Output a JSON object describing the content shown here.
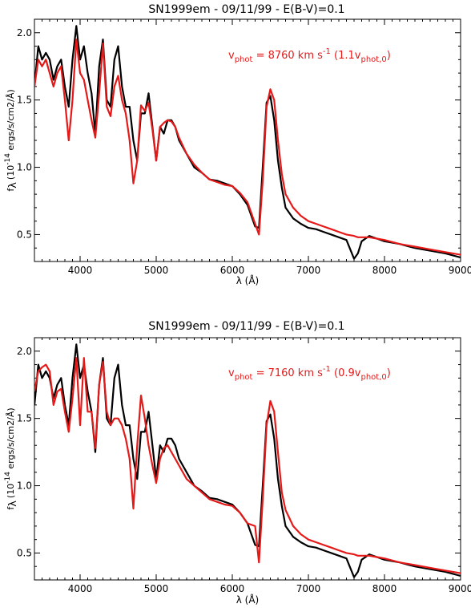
{
  "chart_data": [
    {
      "type": "line",
      "title": "SN1999em  -  09/11/99  -  E(B-V)=0.1",
      "xlabel": "λ (Å)",
      "ylabel": {
        "f": "f",
        "sub": "λ",
        "unit_pre": "(10",
        "exp": "-14",
        "unit_post": " ergs/s/cm2/Å)"
      },
      "annotation": {
        "v": "v",
        "sub": "phot",
        "mid": " = 8760 km s",
        "exp": "-1",
        "tail": " (1.1v",
        "tail_sub": "phot,0",
        "close": ")"
      },
      "xlim": [
        3400,
        9000
      ],
      "ylim": [
        0.3,
        2.1
      ],
      "xticks": [
        4000,
        5000,
        6000,
        7000,
        8000,
        9000
      ],
      "yticks": [
        0.5,
        1.0,
        1.5,
        2.0
      ],
      "yticklabels": [
        "0.5",
        "1.0",
        "1.5",
        "2.0"
      ],
      "series": [
        {
          "color": "#000000",
          "x": [
            3400,
            3450,
            3500,
            3550,
            3600,
            3650,
            3700,
            3750,
            3800,
            3850,
            3900,
            3950,
            4000,
            4050,
            4100,
            4150,
            4200,
            4250,
            4300,
            4350,
            4400,
            4450,
            4500,
            4550,
            4600,
            4650,
            4700,
            4750,
            4800,
            4850,
            4900,
            4950,
            5000,
            5050,
            5100,
            5150,
            5200,
            5250,
            5300,
            5400,
            5500,
            5600,
            5700,
            5800,
            5900,
            6000,
            6100,
            6200,
            6300,
            6350,
            6400,
            6450,
            6500,
            6550,
            6600,
            6650,
            6700,
            6800,
            6900,
            7000,
            7100,
            7200,
            7300,
            7400,
            7500,
            7600,
            7650,
            7700,
            7800,
            7900,
            8000,
            8200,
            8400,
            8600,
            8800,
            9000
          ],
          "y": [
            1.6,
            1.9,
            1.8,
            1.85,
            1.8,
            1.65,
            1.75,
            1.8,
            1.6,
            1.45,
            1.8,
            2.05,
            1.8,
            1.9,
            1.7,
            1.55,
            1.25,
            1.75,
            1.95,
            1.5,
            1.45,
            1.8,
            1.9,
            1.6,
            1.45,
            1.45,
            1.2,
            1.05,
            1.4,
            1.4,
            1.55,
            1.3,
            1.05,
            1.3,
            1.25,
            1.35,
            1.35,
            1.3,
            1.2,
            1.1,
            1.0,
            0.96,
            0.91,
            0.9,
            0.88,
            0.86,
            0.8,
            0.72,
            0.56,
            0.55,
            1.0,
            1.48,
            1.53,
            1.35,
            1.05,
            0.85,
            0.7,
            0.62,
            0.58,
            0.55,
            0.54,
            0.52,
            0.5,
            0.48,
            0.46,
            0.32,
            0.36,
            0.45,
            0.49,
            0.47,
            0.45,
            0.43,
            0.4,
            0.38,
            0.36,
            0.33
          ]
        },
        {
          "color": "#e61919",
          "x": [
            3400,
            3450,
            3500,
            3550,
            3600,
            3650,
            3700,
            3750,
            3800,
            3850,
            3900,
            3950,
            4000,
            4050,
            4100,
            4150,
            4200,
            4250,
            4300,
            4350,
            4400,
            4450,
            4500,
            4550,
            4600,
            4650,
            4700,
            4750,
            4800,
            4850,
            4900,
            4950,
            5000,
            5050,
            5100,
            5150,
            5200,
            5250,
            5300,
            5400,
            5500,
            5600,
            5700,
            5800,
            5900,
            6000,
            6100,
            6200,
            6300,
            6350,
            6400,
            6450,
            6500,
            6550,
            6600,
            6650,
            6700,
            6800,
            6900,
            7000,
            7100,
            7200,
            7300,
            7400,
            7500,
            7600,
            7650,
            7700,
            7800,
            7900,
            8000,
            8200,
            8400,
            8600,
            8800,
            9000
          ],
          "y": [
            1.6,
            1.8,
            1.75,
            1.8,
            1.7,
            1.6,
            1.7,
            1.75,
            1.5,
            1.2,
            1.5,
            1.95,
            1.7,
            1.65,
            1.5,
            1.35,
            1.22,
            1.55,
            1.92,
            1.45,
            1.38,
            1.6,
            1.68,
            1.5,
            1.4,
            1.2,
            0.88,
            1.05,
            1.46,
            1.42,
            1.48,
            1.28,
            1.05,
            1.3,
            1.33,
            1.35,
            1.34,
            1.3,
            1.22,
            1.1,
            1.02,
            0.96,
            0.91,
            0.89,
            0.87,
            0.86,
            0.81,
            0.74,
            0.58,
            0.5,
            0.9,
            1.45,
            1.58,
            1.5,
            1.2,
            0.95,
            0.8,
            0.7,
            0.64,
            0.6,
            0.58,
            0.56,
            0.54,
            0.52,
            0.5,
            0.49,
            0.48,
            0.48,
            0.48,
            0.47,
            0.46,
            0.43,
            0.41,
            0.39,
            0.37,
            0.35
          ]
        }
      ]
    },
    {
      "type": "line",
      "title": "SN1999em  -  09/11/99  -  E(B-V)=0.1",
      "xlabel": "λ (Å)",
      "ylabel": {
        "f": "f",
        "sub": "λ",
        "unit_pre": "(10",
        "exp": "-14",
        "unit_post": " ergs/s/cm2/Å)"
      },
      "annotation": {
        "v": "v",
        "sub": "phot",
        "mid": " = 7160 km s",
        "exp": "-1",
        "tail": " (0.9v",
        "tail_sub": "phot,0",
        "close": ")"
      },
      "xlim": [
        3400,
        9000
      ],
      "ylim": [
        0.3,
        2.1
      ],
      "xticks": [
        4000,
        5000,
        6000,
        7000,
        8000,
        9000
      ],
      "yticks": [
        0.5,
        1.0,
        1.5,
        2.0
      ],
      "yticklabels": [
        "0.5",
        "1.0",
        "1.5",
        "2.0"
      ],
      "series": [
        {
          "color": "#000000",
          "x": [
            3400,
            3450,
            3500,
            3550,
            3600,
            3650,
            3700,
            3750,
            3800,
            3850,
            3900,
            3950,
            4000,
            4050,
            4100,
            4150,
            4200,
            4250,
            4300,
            4350,
            4400,
            4450,
            4500,
            4550,
            4600,
            4650,
            4700,
            4750,
            4800,
            4850,
            4900,
            4950,
            5000,
            5050,
            5100,
            5150,
            5200,
            5250,
            5300,
            5400,
            5500,
            5600,
            5700,
            5800,
            5900,
            6000,
            6100,
            6200,
            6300,
            6350,
            6400,
            6450,
            6500,
            6550,
            6600,
            6650,
            6700,
            6800,
            6900,
            7000,
            7100,
            7200,
            7300,
            7400,
            7500,
            7600,
            7650,
            7700,
            7800,
            7900,
            8000,
            8200,
            8400,
            8600,
            8800,
            9000
          ],
          "y": [
            1.6,
            1.9,
            1.8,
            1.85,
            1.8,
            1.65,
            1.75,
            1.8,
            1.6,
            1.45,
            1.8,
            2.05,
            1.8,
            1.9,
            1.7,
            1.55,
            1.25,
            1.75,
            1.95,
            1.5,
            1.45,
            1.8,
            1.9,
            1.6,
            1.45,
            1.45,
            1.2,
            1.05,
            1.4,
            1.4,
            1.55,
            1.3,
            1.05,
            1.3,
            1.25,
            1.35,
            1.35,
            1.3,
            1.2,
            1.1,
            1.0,
            0.96,
            0.91,
            0.9,
            0.88,
            0.86,
            0.8,
            0.72,
            0.56,
            0.55,
            1.0,
            1.48,
            1.53,
            1.35,
            1.05,
            0.85,
            0.7,
            0.62,
            0.58,
            0.55,
            0.54,
            0.52,
            0.5,
            0.48,
            0.46,
            0.32,
            0.36,
            0.45,
            0.49,
            0.47,
            0.45,
            0.43,
            0.4,
            0.38,
            0.36,
            0.33
          ]
        },
        {
          "color": "#e61919",
          "x": [
            3400,
            3450,
            3500,
            3550,
            3600,
            3650,
            3700,
            3750,
            3800,
            3850,
            3900,
            3950,
            4000,
            4050,
            4100,
            4150,
            4200,
            4250,
            4300,
            4350,
            4400,
            4450,
            4500,
            4550,
            4600,
            4650,
            4700,
            4750,
            4800,
            4850,
            4900,
            4950,
            5000,
            5050,
            5100,
            5150,
            5200,
            5250,
            5300,
            5400,
            5500,
            5600,
            5700,
            5800,
            5900,
            6000,
            6100,
            6200,
            6300,
            6350,
            6400,
            6450,
            6500,
            6550,
            6600,
            6650,
            6700,
            6800,
            6900,
            7000,
            7100,
            7200,
            7300,
            7400,
            7500,
            7600,
            7650,
            7700,
            7800,
            7900,
            8000,
            8200,
            8400,
            8600,
            8800,
            9000
          ],
          "y": [
            1.7,
            1.85,
            1.88,
            1.9,
            1.85,
            1.6,
            1.7,
            1.72,
            1.55,
            1.4,
            1.65,
            1.95,
            1.45,
            1.95,
            1.55,
            1.55,
            1.28,
            1.75,
            1.92,
            1.55,
            1.45,
            1.5,
            1.5,
            1.45,
            1.35,
            1.2,
            0.83,
            1.3,
            1.67,
            1.5,
            1.3,
            1.15,
            1.02,
            1.2,
            1.28,
            1.3,
            1.25,
            1.2,
            1.15,
            1.05,
            1.0,
            0.95,
            0.9,
            0.88,
            0.86,
            0.85,
            0.8,
            0.72,
            0.7,
            0.43,
            0.9,
            1.45,
            1.63,
            1.55,
            1.25,
            0.95,
            0.82,
            0.7,
            0.64,
            0.6,
            0.58,
            0.56,
            0.54,
            0.52,
            0.5,
            0.49,
            0.48,
            0.48,
            0.48,
            0.47,
            0.46,
            0.43,
            0.41,
            0.39,
            0.37,
            0.35
          ]
        }
      ]
    }
  ]
}
